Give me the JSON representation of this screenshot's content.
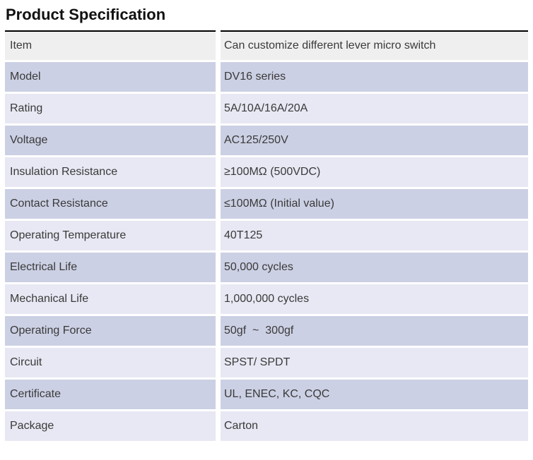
{
  "page": {
    "title": "Product Specification"
  },
  "table": {
    "rows": [
      {
        "label": "Item",
        "value": "Can customize different lever micro switch",
        "tone": "gray"
      },
      {
        "label": "Model",
        "value": "DV16 series",
        "tone": "dark"
      },
      {
        "label": "Rating",
        "value": "5A/10A/16A/20A",
        "tone": "light"
      },
      {
        "label": "Voltage",
        "value": "AC125/250V",
        "tone": "dark"
      },
      {
        "label": "Insulation Resistance",
        "value": "≥100MΩ (500VDC)",
        "tone": "light"
      },
      {
        "label": "Contact Resistance",
        "value": "≤100MΩ (Initial value)",
        "tone": "dark"
      },
      {
        "label": "Operating Temperature",
        "value": "40T125",
        "tone": "light"
      },
      {
        "label": "Electrical Life",
        "value": "50,000 cycles",
        "tone": "dark"
      },
      {
        "label": "Mechanical Life",
        "value": "1,000,000 cycles",
        "tone": "light"
      },
      {
        "label": "Operating Force",
        "value": "50gf  ~  300gf",
        "tone": "dark"
      },
      {
        "label": "Circuit",
        "value": "SPST/ SPDT",
        "tone": "light"
      },
      {
        "label": "Certificate",
        "value": "UL, ENEC, KC, CQC",
        "tone": "dark"
      },
      {
        "label": "Package",
        "value": "Carton",
        "tone": "light"
      }
    ]
  },
  "colors": {
    "row_gray": "#efeff0",
    "row_dark": "#ccd0e4",
    "row_light": "#e7e8f3",
    "top_border": "#000000",
    "text": "#3a3a3a",
    "title_text": "#111111"
  }
}
